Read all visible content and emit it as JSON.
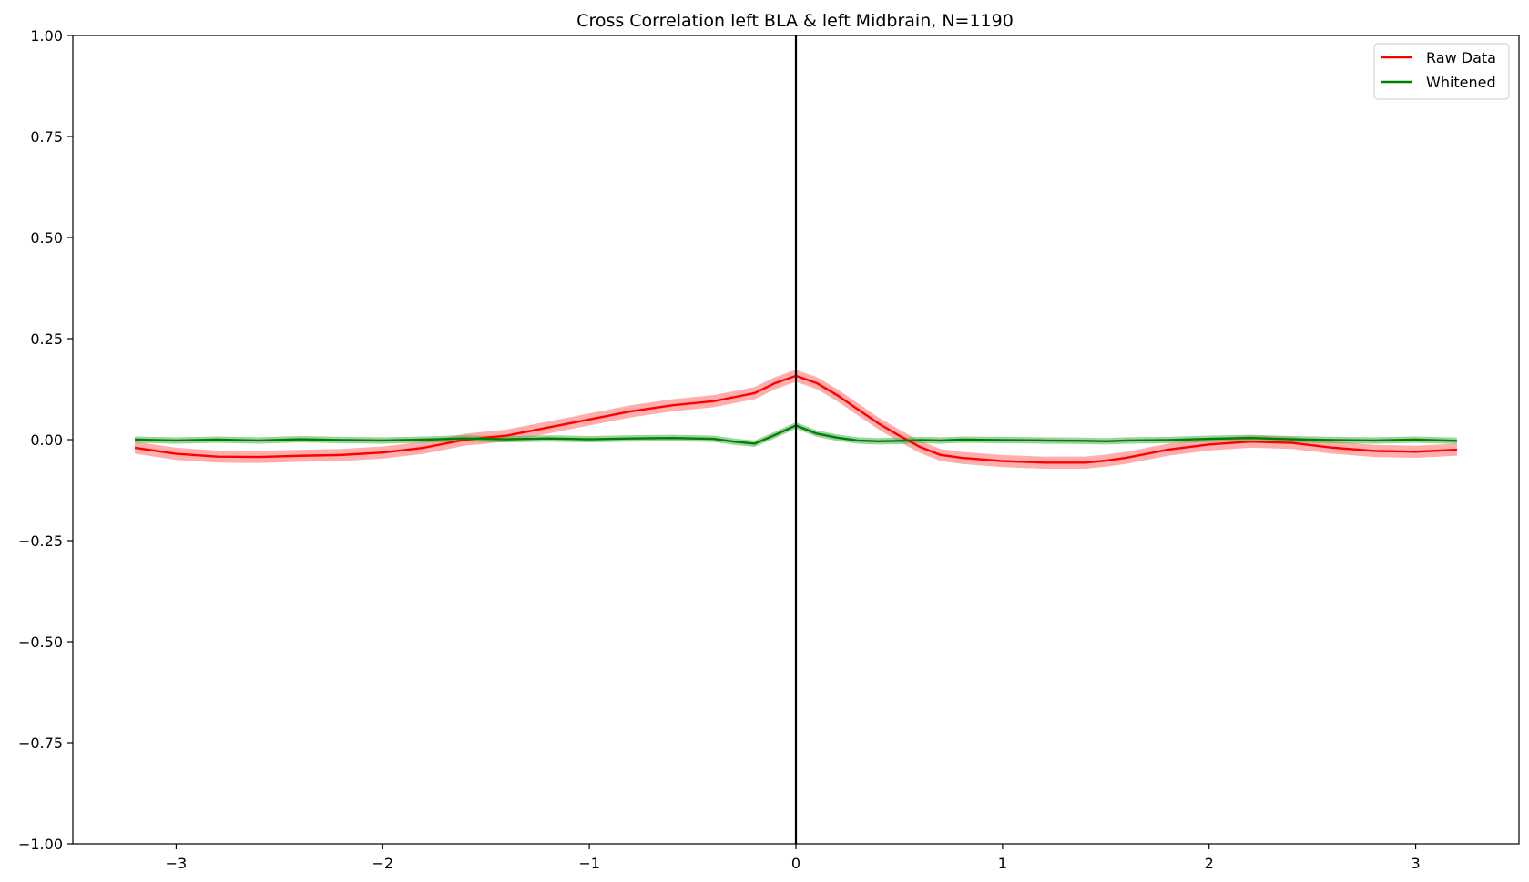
{
  "chart_data": {
    "type": "line",
    "title": "Cross Correlation left BLA & left Midbrain, N=1190",
    "xlabel": "",
    "ylabel": "",
    "xlim": [
      -3.5,
      3.5
    ],
    "ylim": [
      -1.0,
      1.0
    ],
    "x_ticks": [
      -3,
      -2,
      -1,
      0,
      1,
      2,
      3
    ],
    "x_tick_labels": [
      "−3",
      "−2",
      "−1",
      "0",
      "1",
      "2",
      "3"
    ],
    "y_ticks": [
      -1.0,
      -0.75,
      -0.5,
      -0.25,
      0.0,
      0.25,
      0.5,
      0.75,
      1.0
    ],
    "y_tick_labels": [
      "−1.00",
      "−0.75",
      "−0.50",
      "−0.25",
      "0.00",
      "0.25",
      "0.50",
      "0.75",
      "1.00"
    ],
    "grid": false,
    "legend_position": "top-right",
    "vertical_line_x": 0,
    "x": [
      -3.2,
      -3.0,
      -2.8,
      -2.6,
      -2.4,
      -2.2,
      -2.0,
      -1.8,
      -1.6,
      -1.4,
      -1.2,
      -1.0,
      -0.8,
      -0.6,
      -0.4,
      -0.3,
      -0.2,
      -0.1,
      0.0,
      0.1,
      0.2,
      0.3,
      0.4,
      0.5,
      0.6,
      0.7,
      0.8,
      1.0,
      1.2,
      1.4,
      1.5,
      1.6,
      1.8,
      2.0,
      2.2,
      2.4,
      2.6,
      2.8,
      3.0,
      3.2
    ],
    "series": [
      {
        "name": "Raw Data",
        "color": "#ff0000",
        "band_color": "#ff6b6b",
        "band_halfwidth": 0.015,
        "values": [
          -0.02,
          -0.035,
          -0.042,
          -0.043,
          -0.04,
          -0.038,
          -0.032,
          -0.02,
          0.0,
          0.01,
          0.03,
          0.05,
          0.07,
          0.085,
          0.095,
          0.105,
          0.115,
          0.14,
          0.158,
          0.14,
          0.11,
          0.075,
          0.04,
          0.01,
          -0.018,
          -0.038,
          -0.045,
          -0.053,
          -0.057,
          -0.057,
          -0.052,
          -0.045,
          -0.025,
          -0.012,
          -0.005,
          -0.008,
          -0.02,
          -0.028,
          -0.03,
          -0.025
        ]
      },
      {
        "name": "Whitened",
        "color": "#008000",
        "band_color": "#4caf50",
        "band_halfwidth": 0.008,
        "values": [
          0.0,
          -0.002,
          0.0,
          -0.002,
          0.001,
          -0.001,
          -0.002,
          0.0,
          0.003,
          0.001,
          0.003,
          0.001,
          0.003,
          0.004,
          0.002,
          -0.005,
          -0.01,
          0.012,
          0.035,
          0.015,
          0.005,
          -0.002,
          -0.004,
          -0.003,
          -0.001,
          -0.002,
          0.0,
          -0.001,
          -0.002,
          -0.003,
          -0.004,
          -0.002,
          -0.001,
          0.002,
          0.004,
          0.001,
          -0.001,
          -0.002,
          0.0,
          -0.003
        ]
      }
    ]
  }
}
